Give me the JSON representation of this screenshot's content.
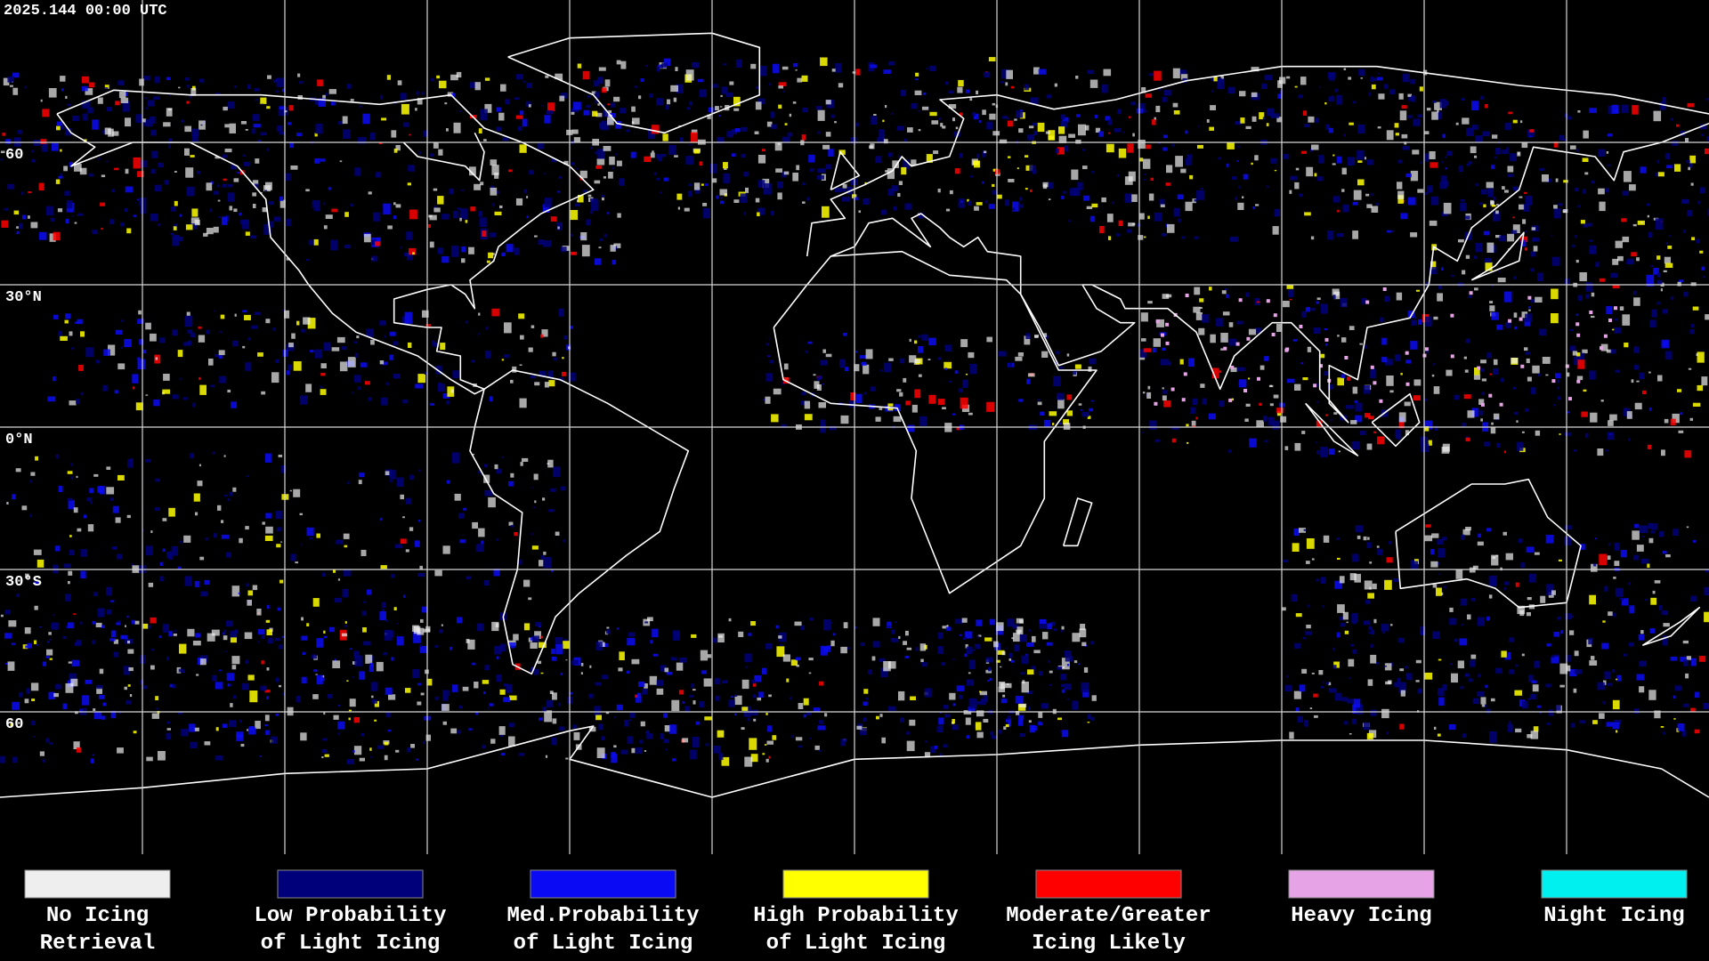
{
  "header": {
    "timestamp": "2025.144 00:00 UTC"
  },
  "map": {
    "latitude_labels": [
      {
        "row": 1,
        "text": "60"
      },
      {
        "row": 2,
        "text": "30°N"
      },
      {
        "row": 3,
        "text": "0°N"
      },
      {
        "row": 4,
        "text": "30°S"
      },
      {
        "row": 5,
        "text": "60"
      }
    ]
  },
  "legend": {
    "items": [
      {
        "line1": "No Icing",
        "line2": "Retrieval",
        "color": "#eeeeee"
      },
      {
        "line1": "Low Probability",
        "line2": "of Light Icing",
        "color": "#00007a"
      },
      {
        "line1": "Med.Probability",
        "line2": "of Light Icing",
        "color": "#0a0af5"
      },
      {
        "line1": "High Probability",
        "line2": "of Light Icing",
        "color": "#ffff00"
      },
      {
        "line1": "Moderate/Greater",
        "line2": "Icing Likely",
        "color": "#ff0000"
      },
      {
        "line1": "Heavy Icing",
        "line2": "",
        "color": "#e6a3e6"
      },
      {
        "line1": "Night Icing",
        "line2": "",
        "color": "#00f0f0"
      }
    ]
  }
}
